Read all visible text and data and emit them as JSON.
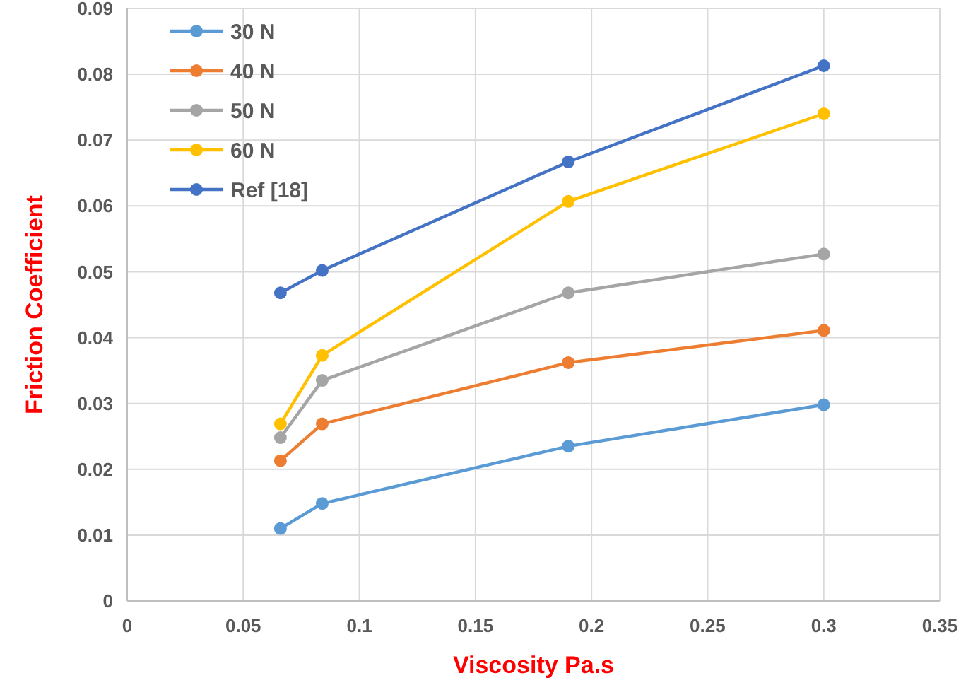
{
  "chart_data": {
    "type": "line",
    "xlabel": "Viscosity Pa.s",
    "ylabel": "Friction Coefficient",
    "x": [
      0.066,
      0.084,
      0.19,
      0.3
    ],
    "xlim": [
      0,
      0.35
    ],
    "xticks": [
      0,
      0.05,
      0.1,
      0.15,
      0.2,
      0.25,
      0.3,
      0.35
    ],
    "ylim": [
      0,
      0.09
    ],
    "yticks": [
      0,
      0.01,
      0.02,
      0.03,
      0.04,
      0.05,
      0.06,
      0.07,
      0.08,
      0.09
    ],
    "grid": true,
    "legend": "top left",
    "marker": "circle",
    "line_style": "solid",
    "series": [
      {
        "name": "30 N",
        "color": "#5b9bd5",
        "values": [
          0.011,
          0.0148,
          0.0235,
          0.0298
        ]
      },
      {
        "name": "40 N",
        "color": "#ed7d31",
        "values": [
          0.0213,
          0.0269,
          0.0362,
          0.0411
        ]
      },
      {
        "name": "50 N",
        "color": "#a5a5a5",
        "values": [
          0.0248,
          0.0335,
          0.0468,
          0.0527
        ]
      },
      {
        "name": "60 N",
        "color": "#ffc000",
        "values": [
          0.0269,
          0.0373,
          0.0607,
          0.074
        ]
      },
      {
        "name": "Ref [18]",
        "color": "#4472c4",
        "values": [
          0.0468,
          0.0502,
          0.0667,
          0.0813
        ]
      }
    ]
  }
}
